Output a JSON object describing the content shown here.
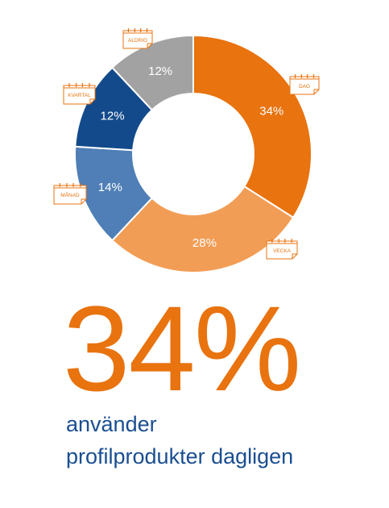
{
  "chart_data": {
    "type": "donut",
    "categories": [
      "DAG",
      "VECKA",
      "MÅNAD",
      "KVARTAL",
      "ALDRIG"
    ],
    "values": [
      34,
      28,
      14,
      12,
      12
    ],
    "value_labels": [
      "34%",
      "28%",
      "14%",
      "12%",
      "12%"
    ],
    "colors": [
      "#E8730F",
      "#F29D55",
      "#4F7FB6",
      "#134A8C",
      "#A2A2A2"
    ],
    "accent_color": "#E8730F",
    "icon": "calendar-icon"
  },
  "headline": {
    "value": "34%",
    "line1": "använder",
    "line2": "profilprodukter dagligen",
    "value_color": "#E8730F",
    "text_color": "#1A4E91"
  }
}
